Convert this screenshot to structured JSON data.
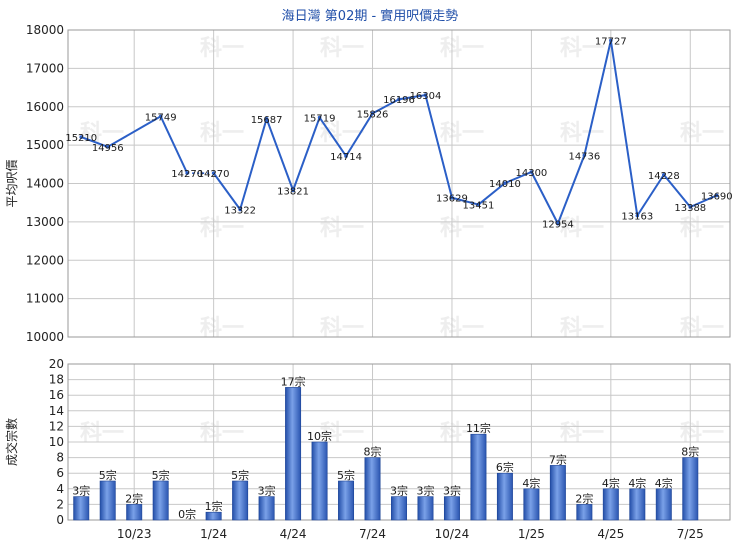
{
  "title": "海日灣 第02期 - 實用呎價走勢",
  "watermark": "科一",
  "chart_data": [
    {
      "type": "line",
      "ylabel": "平均呎價",
      "ylim": [
        10000,
        18000
      ],
      "yticks": [
        "10000",
        "11000",
        "12000",
        "13000",
        "14000",
        "15000",
        "16000",
        "17000",
        "18000"
      ],
      "grid": true,
      "color": "#2b5fc7",
      "points": [
        {
          "x": 0,
          "value": 15210,
          "label": "15210"
        },
        {
          "x": 1,
          "value": 14956,
          "label": "14956"
        },
        {
          "x": 3,
          "value": 15749,
          "label": "15749"
        },
        {
          "x": 4,
          "value": 14270,
          "label": "14270",
          "gap_after": true
        },
        {
          "x": 5,
          "value": 14270,
          "label": "14270"
        },
        {
          "x": 6,
          "value": 13322,
          "label": "13322"
        },
        {
          "x": 7,
          "value": 15687,
          "label": "15687"
        },
        {
          "x": 8,
          "value": 13821,
          "label": "13821"
        },
        {
          "x": 9,
          "value": 15719,
          "label": "15719"
        },
        {
          "x": 10,
          "value": 14714,
          "label": "14714"
        },
        {
          "x": 11,
          "value": 15826,
          "label": "15826"
        },
        {
          "x": 12,
          "value": 16196,
          "label": "16196"
        },
        {
          "x": 13,
          "value": 16304,
          "label": "16304"
        },
        {
          "x": 14,
          "value": 13629,
          "label": "13629"
        },
        {
          "x": 15,
          "value": 13451,
          "label": "13451"
        },
        {
          "x": 16,
          "value": 14010,
          "label": "14010"
        },
        {
          "x": 17,
          "value": 14300,
          "label": "14300"
        },
        {
          "x": 18,
          "value": 12954,
          "label": "12954"
        },
        {
          "x": 19,
          "value": 14736,
          "label": "14736"
        },
        {
          "x": 20,
          "value": 17727,
          "label": "17727"
        },
        {
          "x": 21,
          "value": 13163,
          "label": "13163"
        },
        {
          "x": 22,
          "value": 14228,
          "label": "14228"
        },
        {
          "x": 23,
          "value": 13388,
          "label": "13388"
        },
        {
          "x": 24,
          "value": 13690,
          "label": "13690"
        }
      ]
    },
    {
      "type": "bar",
      "ylabel": "成交宗數",
      "ylim": [
        0,
        20
      ],
      "yticks": [
        "0",
        "2",
        "4",
        "6",
        "8",
        "10",
        "12",
        "14",
        "16",
        "18",
        "20"
      ],
      "grid": true,
      "color": "#3a68c8",
      "values": [
        3,
        5,
        2,
        5,
        0,
        1,
        5,
        3,
        17,
        10,
        5,
        8,
        3,
        3,
        3,
        11,
        6,
        4,
        7,
        2,
        4,
        4,
        4,
        8
      ],
      "labels": [
        "3宗",
        "5宗",
        "2宗",
        "5宗",
        "0宗",
        "1宗",
        "5宗",
        "3宗",
        "17宗",
        "10宗",
        "5宗",
        "8宗",
        "3宗",
        "3宗",
        "3宗",
        "11宗",
        "6宗",
        "4宗",
        "7宗",
        "2宗",
        "4宗",
        "4宗",
        "4宗",
        "8宗"
      ],
      "categories": [
        "10/23",
        "1/24",
        "4/24",
        "7/24",
        "10/24",
        "1/25",
        "4/25",
        "7/25"
      ]
    }
  ]
}
